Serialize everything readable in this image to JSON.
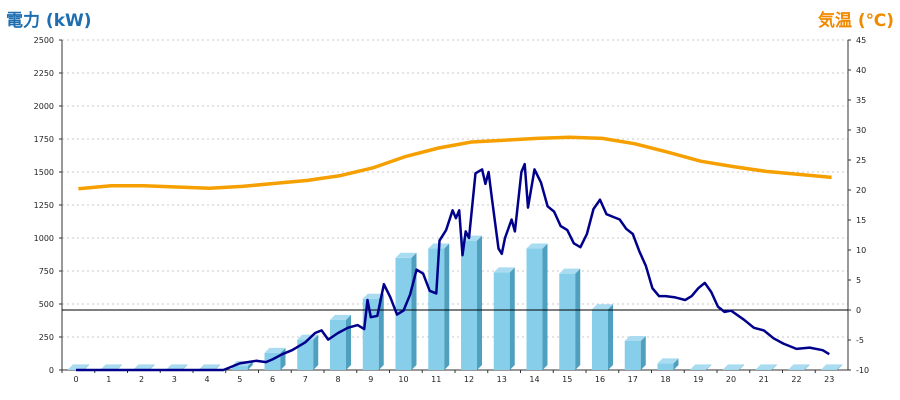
{
  "chart_data": {
    "type": "bar+line",
    "left_axis_title": "電力 (kW)",
    "right_axis_title": "気温 (℃)",
    "x_ticks": [
      "0",
      "1",
      "2",
      "3",
      "4",
      "5",
      "6",
      "7",
      "8",
      "9",
      "10",
      "11",
      "12",
      "13",
      "14",
      "15",
      "16",
      "17",
      "18",
      "19",
      "20",
      "21",
      "22",
      "23"
    ],
    "y_left_ticks": [
      "2500",
      "2250",
      "2000",
      "1750",
      "1500",
      "1250",
      "1000",
      "750",
      "500",
      "250",
      "0"
    ],
    "y_right_ticks": [
      "45",
      "40",
      "35",
      "30",
      "25",
      "20",
      "15",
      "10",
      "5",
      "0",
      "-5",
      "-10"
    ],
    "ylim_left": [
      0,
      2500
    ],
    "ylim_right": [
      -10,
      45
    ],
    "reference_line_right": 0,
    "grid": "dotted horizontal",
    "colors": {
      "bars": "#87ceeb",
      "bar_side": "#4f9fbf",
      "power_line": "#00008b",
      "temp_line": "#f5a000",
      "ref_line": "#000000"
    },
    "bars": {
      "name": "hourly power",
      "x": [
        0,
        1,
        2,
        3,
        4,
        5,
        6,
        7,
        8,
        9,
        10,
        11,
        12,
        13,
        14,
        15,
        16,
        17,
        18,
        19,
        20,
        21,
        22,
        23
      ],
      "values": [
        5,
        5,
        5,
        5,
        5,
        30,
        130,
        230,
        380,
        540,
        850,
        920,
        980,
        740,
        920,
        730,
        460,
        220,
        50,
        5,
        5,
        5,
        5,
        5
      ]
    },
    "power_series": {
      "name": "power",
      "points": [
        [
          0,
          0
        ],
        [
          4.5,
          0
        ],
        [
          5,
          50
        ],
        [
          5.5,
          70
        ],
        [
          5.8,
          60
        ],
        [
          6,
          80
        ],
        [
          6.3,
          120
        ],
        [
          6.6,
          150
        ],
        [
          7,
          210
        ],
        [
          7.3,
          280
        ],
        [
          7.5,
          300
        ],
        [
          7.7,
          230
        ],
        [
          8,
          280
        ],
        [
          8.3,
          320
        ],
        [
          8.6,
          340
        ],
        [
          8.8,
          310
        ],
        [
          8.9,
          530
        ],
        [
          9,
          400
        ],
        [
          9.2,
          410
        ],
        [
          9.4,
          650
        ],
        [
          9.6,
          550
        ],
        [
          9.8,
          420
        ],
        [
          10,
          450
        ],
        [
          10.2,
          570
        ],
        [
          10.4,
          760
        ],
        [
          10.6,
          730
        ],
        [
          10.8,
          600
        ],
        [
          11,
          580
        ],
        [
          11.1,
          980
        ],
        [
          11.3,
          1060
        ],
        [
          11.5,
          1210
        ],
        [
          11.6,
          1150
        ],
        [
          11.7,
          1210
        ],
        [
          11.8,
          870
        ],
        [
          11.9,
          1050
        ],
        [
          12,
          1000
        ],
        [
          12.2,
          1490
        ],
        [
          12.4,
          1520
        ],
        [
          12.5,
          1410
        ],
        [
          12.6,
          1500
        ],
        [
          12.7,
          1300
        ],
        [
          12.9,
          920
        ],
        [
          13,
          880
        ],
        [
          13.1,
          1000
        ],
        [
          13.3,
          1140
        ],
        [
          13.4,
          1050
        ],
        [
          13.6,
          1500
        ],
        [
          13.7,
          1560
        ],
        [
          13.8,
          1230
        ],
        [
          14,
          1520
        ],
        [
          14.2,
          1420
        ],
        [
          14.4,
          1240
        ],
        [
          14.6,
          1200
        ],
        [
          14.8,
          1090
        ],
        [
          15,
          1060
        ],
        [
          15.2,
          960
        ],
        [
          15.4,
          930
        ],
        [
          15.6,
          1030
        ],
        [
          15.8,
          1220
        ],
        [
          16,
          1290
        ],
        [
          16.2,
          1180
        ],
        [
          16.4,
          1160
        ],
        [
          16.6,
          1140
        ],
        [
          16.8,
          1070
        ],
        [
          17,
          1030
        ],
        [
          17.2,
          900
        ],
        [
          17.4,
          790
        ],
        [
          17.6,
          620
        ],
        [
          17.8,
          560
        ],
        [
          18,
          560
        ],
        [
          18.3,
          550
        ],
        [
          18.6,
          530
        ],
        [
          18.8,
          560
        ],
        [
          19,
          620
        ],
        [
          19.2,
          660
        ],
        [
          19.4,
          590
        ],
        [
          19.6,
          480
        ],
        [
          19.8,
          440
        ],
        [
          20,
          450
        ],
        [
          20.4,
          380
        ],
        [
          20.7,
          320
        ],
        [
          21,
          300
        ],
        [
          21.3,
          240
        ],
        [
          21.6,
          200
        ],
        [
          22,
          160
        ],
        [
          22.4,
          170
        ],
        [
          22.8,
          150
        ],
        [
          23,
          120
        ]
      ]
    },
    "temperature_series": {
      "name": "temperature",
      "points": [
        [
          0,
          20.2
        ],
        [
          1,
          20.7
        ],
        [
          2,
          20.7
        ],
        [
          3,
          20.5
        ],
        [
          4,
          20.3
        ],
        [
          5,
          20.6
        ],
        [
          6,
          21.1
        ],
        [
          7,
          21.6
        ],
        [
          8,
          22.4
        ],
        [
          9,
          23.7
        ],
        [
          10,
          25.6
        ],
        [
          11,
          27.0
        ],
        [
          12,
          28.0
        ],
        [
          13,
          28.3
        ],
        [
          14,
          28.6
        ],
        [
          15,
          28.8
        ],
        [
          16,
          28.6
        ],
        [
          17,
          27.7
        ],
        [
          18,
          26.3
        ],
        [
          19,
          24.8
        ],
        [
          20,
          23.9
        ],
        [
          21,
          23.1
        ],
        [
          22,
          22.6
        ],
        [
          23,
          22.1
        ]
      ]
    }
  }
}
